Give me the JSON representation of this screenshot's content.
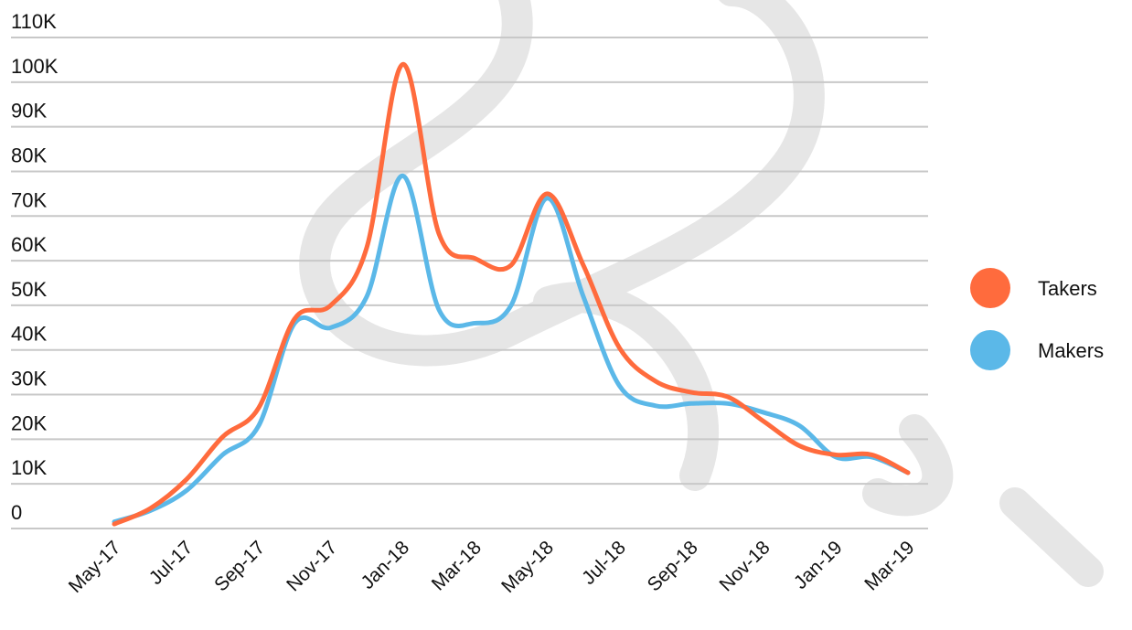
{
  "chart_data": {
    "type": "line",
    "categories": [
      "May-17",
      null,
      "Jul-17",
      null,
      "Sep-17",
      null,
      "Nov-17",
      null,
      "Jan-18",
      null,
      "Mar-18",
      null,
      "May-18",
      null,
      "Jul-18",
      null,
      "Sep-18",
      null,
      "Nov-18",
      null,
      "Jan-19",
      null,
      "Mar-19"
    ],
    "series": [
      {
        "name": "Takers",
        "color": "#ff6b3d",
        "values": [
          1000,
          4500,
          11000,
          20500,
          27000,
          47000,
          50000,
          63000,
          104000,
          66000,
          60500,
          59000,
          75000,
          59000,
          40500,
          33000,
          30500,
          29500,
          24000,
          18500,
          16500,
          16500,
          12500
        ]
      },
      {
        "name": "Makers",
        "color": "#5bb8e8",
        "values": [
          1500,
          4000,
          8500,
          16500,
          23000,
          46000,
          45000,
          52000,
          79000,
          49000,
          46000,
          50000,
          74000,
          52000,
          32000,
          27500,
          28000,
          28000,
          26000,
          23000,
          16000,
          16000,
          12500
        ]
      }
    ],
    "ylim": [
      0,
      110000
    ],
    "yticks": [
      0,
      {
        "value": 10000,
        "label": "10K"
      },
      {
        "value": 20000,
        "label": "20K"
      },
      {
        "value": 30000,
        "label": "30K"
      },
      {
        "value": 40000,
        "label": "40K"
      },
      {
        "value": 50000,
        "label": "50K"
      },
      {
        "value": 60000,
        "label": "60K"
      },
      {
        "value": 70000,
        "label": "70K"
      },
      {
        "value": 80000,
        "label": "80K"
      },
      {
        "value": 90000,
        "label": "90K"
      },
      {
        "value": 100000,
        "label": "100K"
      },
      {
        "value": 110000,
        "label": "110K"
      }
    ],
    "grid": true,
    "legend": "right"
  }
}
